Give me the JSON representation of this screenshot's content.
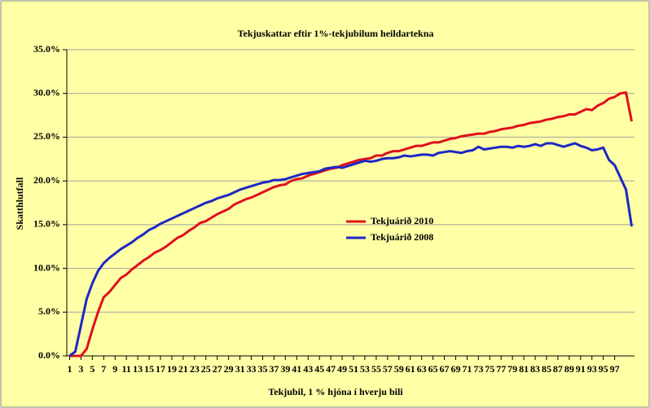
{
  "chart_data": {
    "type": "line",
    "title": "Tekjuskattar eftir 1%-tekjubilum heildartekna",
    "xlabel": "Tekjubil, 1 % hjóna í hverju bili",
    "ylabel": "Skatthlutfall",
    "x": [
      1,
      2,
      3,
      4,
      5,
      6,
      7,
      8,
      9,
      10,
      11,
      12,
      13,
      14,
      15,
      16,
      17,
      18,
      19,
      20,
      21,
      22,
      23,
      24,
      25,
      26,
      27,
      28,
      29,
      30,
      31,
      32,
      33,
      34,
      35,
      36,
      37,
      38,
      39,
      40,
      41,
      42,
      43,
      44,
      45,
      46,
      47,
      48,
      49,
      50,
      51,
      52,
      53,
      54,
      55,
      56,
      57,
      58,
      59,
      60,
      61,
      62,
      63,
      64,
      65,
      66,
      67,
      68,
      69,
      70,
      71,
      72,
      73,
      74,
      75,
      76,
      77,
      78,
      79,
      80,
      81,
      82,
      83,
      84,
      85,
      86,
      87,
      88,
      89,
      90,
      91,
      92,
      93,
      94,
      95,
      96,
      97,
      98,
      99,
      100
    ],
    "series": [
      {
        "name": "Tekjuárið 2010",
        "color": "#e0101c",
        "values": [
          0,
          0,
          0,
          0.8,
          3,
          5,
          6.7,
          7.3,
          8.1,
          8.9,
          9.3,
          9.9,
          10.4,
          10.9,
          11.3,
          11.8,
          12.1,
          12.5,
          13,
          13.5,
          13.8,
          14.3,
          14.7,
          15.2,
          15.4,
          15.8,
          16.2,
          16.5,
          16.8,
          17.3,
          17.6,
          17.9,
          18.1,
          18.4,
          18.7,
          19,
          19.3,
          19.5,
          19.6,
          20,
          20.2,
          20.3,
          20.6,
          20.8,
          21,
          21.2,
          21.4,
          21.5,
          21.8,
          22,
          22.2,
          22.4,
          22.5,
          22.6,
          22.9,
          22.9,
          23.2,
          23.4,
          23.4,
          23.6,
          23.8,
          24,
          24,
          24.2,
          24.4,
          24.4,
          24.6,
          24.8,
          24.9,
          25.1,
          25.2,
          25.3,
          25.4,
          25.4,
          25.6,
          25.7,
          25.9,
          26,
          26.1,
          26.3,
          26.4,
          26.6,
          26.7,
          26.8,
          27,
          27.1,
          27.3,
          27.4,
          27.6,
          27.6,
          27.9,
          28.2,
          28.1,
          28.6,
          28.9,
          29.4,
          29.6,
          30,
          30.1,
          26.8
        ]
      },
      {
        "name": "Tekjuárið 2008",
        "color": "#1c28c4",
        "values": [
          0,
          0.5,
          3.5,
          6.5,
          8.3,
          9.7,
          10.6,
          11.2,
          11.7,
          12.2,
          12.6,
          13,
          13.5,
          13.9,
          14.4,
          14.7,
          15.1,
          15.4,
          15.7,
          16,
          16.3,
          16.6,
          16.9,
          17.2,
          17.5,
          17.7,
          18,
          18.2,
          18.4,
          18.7,
          19,
          19.2,
          19.4,
          19.6,
          19.8,
          19.9,
          20.1,
          20.1,
          20.2,
          20.4,
          20.6,
          20.8,
          20.9,
          21,
          21.1,
          21.4,
          21.5,
          21.6,
          21.5,
          21.7,
          21.9,
          22.1,
          22.3,
          22.2,
          22.3,
          22.5,
          22.6,
          22.6,
          22.7,
          22.9,
          22.8,
          22.9,
          23,
          23,
          22.9,
          23.2,
          23.3,
          23.4,
          23.3,
          23.2,
          23.4,
          23.5,
          23.9,
          23.6,
          23.7,
          23.8,
          23.9,
          23.9,
          23.8,
          24,
          23.9,
          24,
          24.2,
          24,
          24.3,
          24.3,
          24.1,
          23.9,
          24.1,
          24.3,
          24,
          23.8,
          23.5,
          23.6,
          23.8,
          22.4,
          21.8,
          20.4,
          19,
          14.8
        ]
      }
    ],
    "xlim": [
      0.5,
      100.5
    ],
    "xticks": [
      1,
      3,
      5,
      7,
      9,
      11,
      13,
      15,
      17,
      19,
      21,
      23,
      25,
      27,
      29,
      31,
      33,
      35,
      37,
      39,
      41,
      43,
      45,
      47,
      49,
      51,
      53,
      55,
      57,
      59,
      61,
      63,
      65,
      67,
      69,
      71,
      73,
      75,
      77,
      79,
      81,
      83,
      85,
      87,
      89,
      91,
      93,
      95,
      97
    ],
    "ylim": [
      0,
      35
    ],
    "yticks": [
      {
        "value": 0,
        "label": "0.0%"
      },
      {
        "value": 5,
        "label": "5.0%"
      },
      {
        "value": 10,
        "label": "10.0%"
      },
      {
        "value": 15,
        "label": "15.0%"
      },
      {
        "value": 20,
        "label": "20.0%"
      },
      {
        "value": 25,
        "label": "25.0%"
      },
      {
        "value": 30,
        "label": "30.0%"
      },
      {
        "value": 35,
        "label": "35.0%"
      }
    ],
    "grid": true,
    "legend": "center"
  }
}
